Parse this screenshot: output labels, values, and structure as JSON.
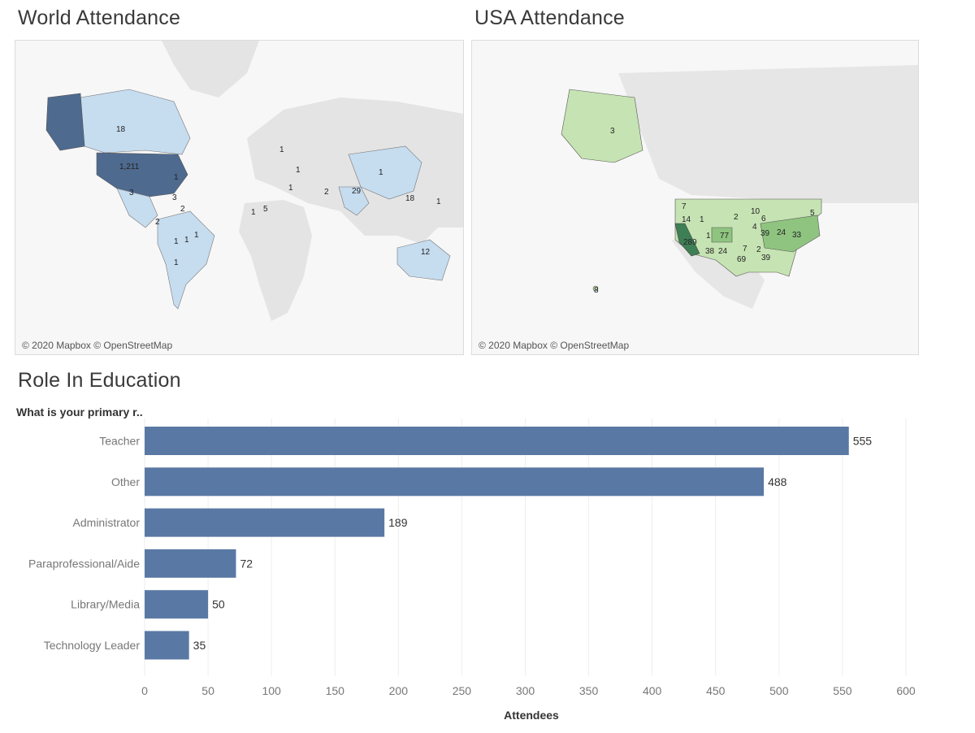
{
  "dashboard": {
    "world_title": "World Attendance",
    "usa_title": "USA Attendance",
    "role_title": "Role In Education",
    "map_credit": "© 2020 Mapbox © OpenStreetMap"
  },
  "world_map": {
    "labels": [
      {
        "text": "18",
        "region": "Canada"
      },
      {
        "text": "1,211",
        "region": "United States"
      },
      {
        "text": "3",
        "region": "Mexico"
      },
      {
        "text": "1",
        "region": "Caribbean"
      },
      {
        "text": "3",
        "region": "Central America"
      },
      {
        "text": "2",
        "region": "Colombia"
      },
      {
        "text": "2",
        "region": "Ecuador"
      },
      {
        "text": "1",
        "region": "Peru"
      },
      {
        "text": "1",
        "region": "Brazil"
      },
      {
        "text": "1",
        "region": "Argentina"
      },
      {
        "text": "1",
        "region": "Bermuda"
      },
      {
        "text": "1",
        "region": "Germany"
      },
      {
        "text": "1",
        "region": "Saudi Arabia"
      },
      {
        "text": "1",
        "region": "Turkey"
      },
      {
        "text": "2",
        "region": "Pakistan"
      },
      {
        "text": "29",
        "region": "India"
      },
      {
        "text": "1",
        "region": "China"
      },
      {
        "text": "5",
        "region": "Nigeria"
      },
      {
        "text": "1",
        "region": "Ghana"
      },
      {
        "text": "18",
        "region": "Philippines"
      },
      {
        "text": "1",
        "region": "Guam"
      },
      {
        "text": "12",
        "region": "Australia"
      }
    ]
  },
  "usa_map": {
    "labels": [
      {
        "text": "3",
        "region": "Alaska"
      },
      {
        "text": "7",
        "region": "Washington"
      },
      {
        "text": "14",
        "region": "Oregon"
      },
      {
        "text": "1",
        "region": "Idaho"
      },
      {
        "text": "289",
        "region": "California"
      },
      {
        "text": "1",
        "region": "Utah"
      },
      {
        "text": "77",
        "region": "Colorado"
      },
      {
        "text": "38",
        "region": "Arizona"
      },
      {
        "text": "24",
        "region": "New Mexico"
      },
      {
        "text": "69",
        "region": "Texas"
      },
      {
        "text": "10",
        "region": "Minnesota"
      },
      {
        "text": "2",
        "region": "Nebraska"
      },
      {
        "text": "6",
        "region": "Wisconsin"
      },
      {
        "text": "4",
        "region": "Iowa"
      },
      {
        "text": "7",
        "region": "Oklahoma"
      },
      {
        "text": "2",
        "region": "Arkansas"
      },
      {
        "text": "39",
        "region": "Illinois"
      },
      {
        "text": "24",
        "region": "Ohio"
      },
      {
        "text": "33",
        "region": "Virginia"
      },
      {
        "text": "39",
        "region": "Georgia"
      },
      {
        "text": "5",
        "region": "Maine"
      },
      {
        "text": "8",
        "region": "Hawaii"
      }
    ],
    "colors": {
      "light": "#c6e3b3",
      "mid": "#8fc480",
      "dark": "#3f7f55"
    }
  },
  "chart_data": {
    "type": "bar",
    "orientation": "horizontal",
    "title": "Role In Education",
    "field_header": "What is your primary r..",
    "categories": [
      "Teacher",
      "Other",
      "Administrator",
      "Paraprofessional/Aide",
      "Library/Media",
      "Technology Leader"
    ],
    "values": [
      555,
      488,
      189,
      72,
      50,
      35
    ],
    "xlabel": "Attendees",
    "xlim": [
      0,
      600
    ],
    "xticks": [
      0,
      50,
      100,
      150,
      200,
      250,
      300,
      350,
      400,
      450,
      500,
      550,
      600
    ],
    "grid": true,
    "bar_color": "#5a78a4"
  }
}
